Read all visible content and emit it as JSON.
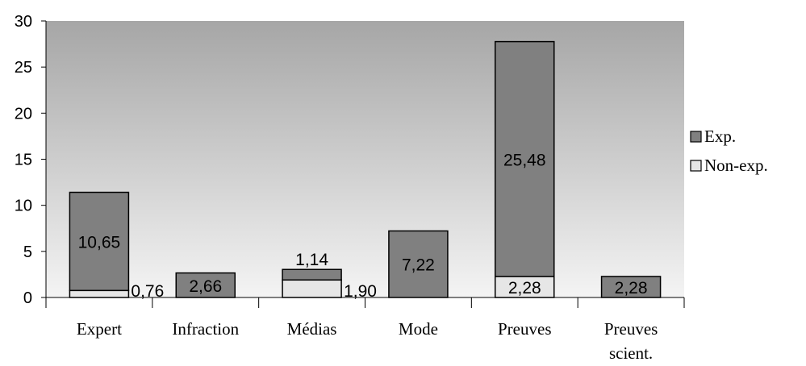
{
  "chart_data": {
    "type": "bar",
    "stacked": true,
    "categories": [
      "Expert",
      "Infraction",
      "Médias",
      "Mode",
      "Preuves",
      "Preuves scient."
    ],
    "category_lines": [
      [
        "Expert"
      ],
      [
        "Infraction"
      ],
      [
        "Médias"
      ],
      [
        "Mode"
      ],
      [
        "Preuves"
      ],
      [
        "Preuves",
        "scient."
      ]
    ],
    "series": [
      {
        "name": "Non-exp.",
        "color": "#e6e6e6",
        "values": [
          0.76,
          0,
          1.9,
          0,
          2.28,
          0
        ]
      },
      {
        "name": "Exp.",
        "color": "#808080",
        "values": [
          10.65,
          2.66,
          1.14,
          7.22,
          25.48,
          2.28
        ]
      }
    ],
    "data_labels": [
      {
        "series": "Exp.",
        "category": "Expert",
        "text": "10,65"
      },
      {
        "series": "Non-exp.",
        "category": "Expert",
        "text": "0,76"
      },
      {
        "series": "Exp.",
        "category": "Infraction",
        "text": "2,66"
      },
      {
        "series": "Exp.",
        "category": "Médias",
        "text": "1,14"
      },
      {
        "series": "Non-exp.",
        "category": "Médias",
        "text": "1,90"
      },
      {
        "series": "Exp.",
        "category": "Mode",
        "text": "7,22"
      },
      {
        "series": "Exp.",
        "category": "Preuves",
        "text": "25,48"
      },
      {
        "series": "Non-exp.",
        "category": "Preuves",
        "text": "2,28"
      },
      {
        "series": "Exp.",
        "category": "Preuves scient.",
        "text": "2,28"
      }
    ],
    "yticks": [
      "0",
      "5",
      "10",
      "15",
      "20",
      "25",
      "30"
    ],
    "ylim": [
      0,
      30
    ],
    "legend_position": "right",
    "legend": [
      "Exp.",
      "Non-exp."
    ],
    "plot_background_gradient": [
      "#a6a6a6",
      "#f4f4f4"
    ]
  }
}
